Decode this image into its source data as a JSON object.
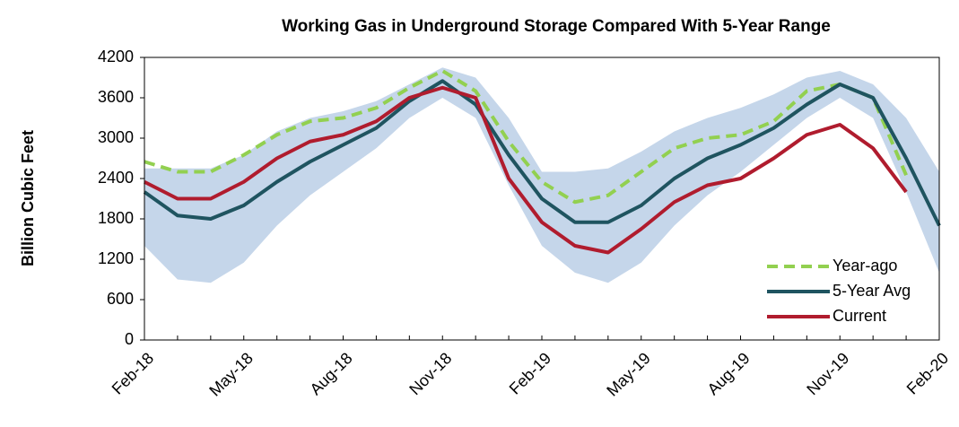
{
  "chart_data": {
    "type": "line",
    "title": "Working Gas in Underground Storage Compared With 5-Year Range",
    "y_label": "Billion Cubic Feet",
    "categories": [
      "Feb-18",
      null,
      null,
      "May-18",
      null,
      null,
      "Aug-18",
      null,
      null,
      "Nov-18",
      null,
      null,
      "Feb-19",
      null,
      null,
      "May-19",
      null,
      null,
      "Aug-19",
      null,
      null,
      "Nov-19",
      null,
      null,
      "Feb-20"
    ],
    "range": {
      "color": "#c5d6ea",
      "low": [
        1400,
        900,
        850,
        1150,
        1700,
        2150,
        2500,
        2850,
        3300,
        3600,
        3300,
        2300,
        1400,
        1000,
        850,
        1150,
        1700,
        2150,
        2500,
        2900,
        3300,
        3600,
        3300,
        2200,
        1000
      ],
      "high": [
        2550,
        2550,
        2550,
        2750,
        3100,
        3300,
        3400,
        3550,
        3800,
        4050,
        3900,
        3300,
        2500,
        2500,
        2550,
        2800,
        3100,
        3300,
        3450,
        3650,
        3900,
        4000,
        3800,
        3300,
        2500
      ]
    },
    "series": [
      {
        "name": "Year-ago",
        "color": "#92d050",
        "dashed": true,
        "values": [
          2650,
          2500,
          2500,
          2750,
          3050,
          3250,
          3300,
          3450,
          3750,
          4000,
          3700,
          2950,
          2350,
          2050,
          2150,
          2500,
          2850,
          3000,
          3050,
          3250,
          3700,
          3800,
          3600,
          2450,
          null
        ]
      },
      {
        "name": "5-Year Avg",
        "color": "#1f5460",
        "dashed": false,
        "values": [
          2200,
          1850,
          1800,
          2000,
          2350,
          2650,
          2900,
          3150,
          3550,
          3850,
          3500,
          2750,
          2100,
          1750,
          1750,
          2000,
          2400,
          2700,
          2900,
          3150,
          3500,
          3800,
          3600,
          2700,
          1700
        ]
      },
      {
        "name": "Current",
        "color": "#b01c2e",
        "dashed": false,
        "values": [
          2350,
          2100,
          2100,
          2350,
          2700,
          2950,
          3050,
          3250,
          3600,
          3750,
          3600,
          2400,
          1750,
          1400,
          1300,
          1650,
          2050,
          2300,
          2400,
          2700,
          3050,
          3200,
          2850,
          2200,
          null
        ]
      }
    ],
    "ylim": [
      0,
      4200
    ],
    "yticks": [
      0,
      600,
      1200,
      1800,
      2400,
      3000,
      3600,
      4200
    ],
    "legend": "lower right"
  }
}
